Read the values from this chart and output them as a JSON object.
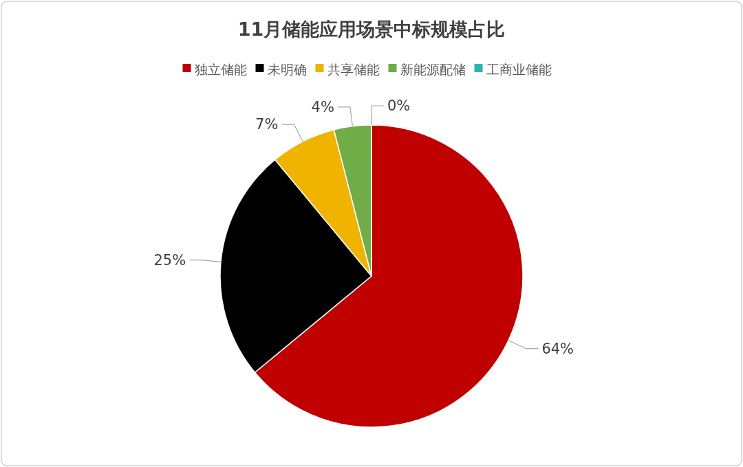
{
  "chart_data": {
    "type": "pie",
    "title": "11月储能应用场景中标规模占比",
    "categories": [
      "独立储能",
      "未明确",
      "共享储能",
      "新能源配储",
      "工商业储能"
    ],
    "values": [
      64,
      25,
      7,
      4,
      0
    ],
    "colors": [
      "#c00000",
      "#000000",
      "#f0b400",
      "#70ad47",
      "#2cb5ad"
    ],
    "value_labels": [
      "64%",
      "25%",
      "7%",
      "4%",
      "0%"
    ],
    "legend": "top"
  }
}
